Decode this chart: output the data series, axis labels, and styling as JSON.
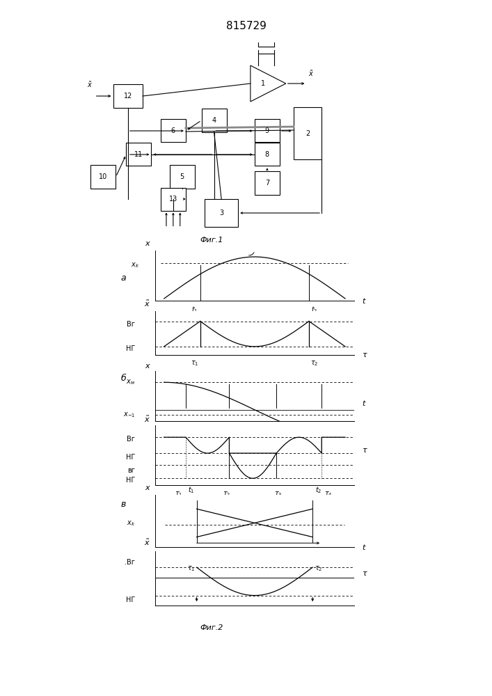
{
  "title": "815729",
  "fig1_label": "Фиг.1",
  "fig2_label": "Фиг.2",
  "bg_color": "#ffffff",
  "line_color": "#000000"
}
